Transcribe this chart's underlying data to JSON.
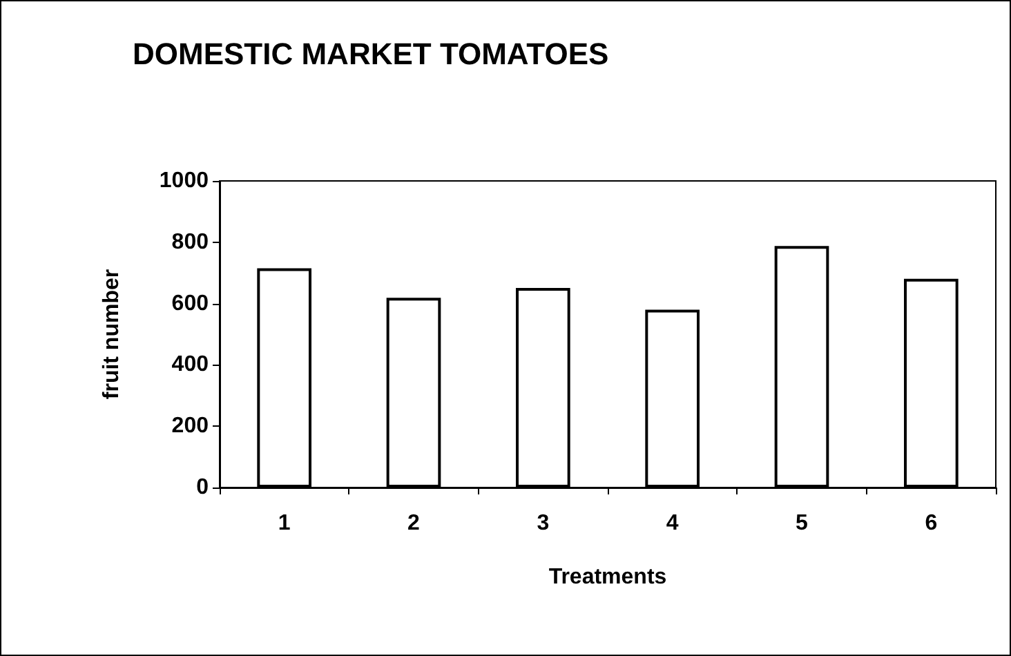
{
  "chart_data": {
    "type": "bar",
    "title": "DOMESTIC MARKET TOMATOES",
    "xlabel": "Treatments",
    "ylabel": "fruit number",
    "categories": [
      "1",
      "2",
      "3",
      "4",
      "5",
      "6"
    ],
    "values": [
      715,
      619,
      651,
      580,
      788,
      681
    ],
    "color": "#ffffff",
    "ylim": [
      0,
      1000
    ],
    "yticks": [
      0,
      200,
      400,
      600,
      800,
      1000
    ],
    "grid": false
  }
}
